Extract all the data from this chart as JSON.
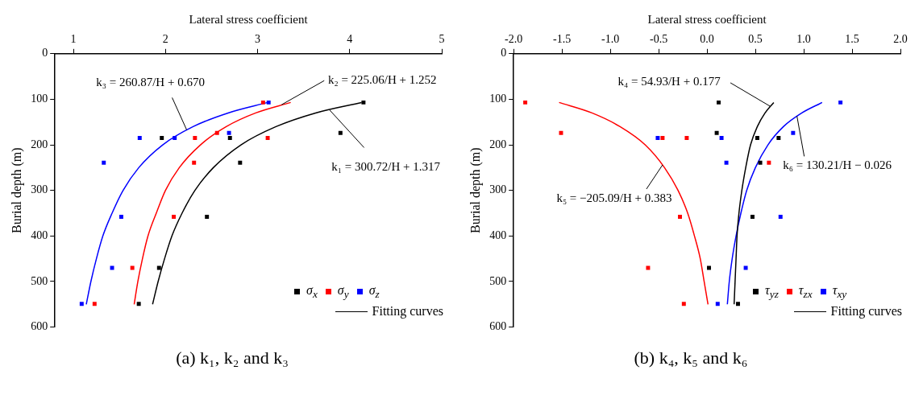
{
  "chart_data": [
    {
      "type": "scatter",
      "title": "(a) k₁, k₂ and k₃",
      "xlabel": "Lateral stress coefficient",
      "ylabel": "Burial depth (m)",
      "xlim": [
        0.8,
        5
      ],
      "xticks": [
        1,
        2,
        3,
        4,
        5
      ],
      "ylim": [
        600,
        0
      ],
      "yticks": [
        0,
        100,
        200,
        300,
        400,
        500,
        600
      ],
      "legend": "bottom right",
      "series": [
        {
          "name": "σ$_{x}$",
          "marker": "square",
          "color": "#000000",
          "x": [
            4.15,
            3.9,
            2.7,
            1.96,
            2.81,
            2.45,
            1.93,
            1.71
          ],
          "values": [
            107,
            174,
            185,
            185,
            239,
            358,
            470,
            549
          ]
        },
        {
          "name": "σ$_{y}$",
          "marker": "square",
          "color": "#ff0000",
          "x": [
            3.06,
            2.56,
            2.32,
            3.11,
            2.31,
            2.09,
            1.64,
            1.23
          ],
          "values": [
            107,
            174,
            185,
            185,
            239,
            358,
            470,
            549
          ]
        },
        {
          "name": "σ$_{z}$",
          "marker": "square",
          "color": "#0000ff",
          "x": [
            3.12,
            2.69,
            1.72,
            2.1,
            1.33,
            1.52,
            1.42,
            1.09
          ],
          "values": [
            107,
            174,
            185,
            185,
            239,
            358,
            470,
            549
          ]
        },
        {
          "name": "Fitting curves",
          "type": "line",
          "color": "#000000",
          "x": [
            4.13,
            3.63,
            3.2,
            2.82,
            2.52,
            2.32,
            2.18,
            2.07,
            1.99,
            1.92,
            1.86
          ],
          "values": [
            107,
            130,
            160,
            200,
            250,
            300,
            350,
            400,
            450,
            500,
            550
          ]
        },
        {
          "type": "line",
          "color": "#ff0000",
          "x": [
            3.36,
            2.98,
            2.66,
            2.38,
            2.15,
            2.0,
            1.9,
            1.81,
            1.75,
            1.7,
            1.66
          ],
          "values": [
            107,
            130,
            160,
            200,
            250,
            300,
            350,
            400,
            450,
            500,
            550
          ]
        },
        {
          "type": "line",
          "color": "#0000ff",
          "x": [
            3.11,
            2.68,
            2.3,
            1.97,
            1.71,
            1.54,
            1.42,
            1.32,
            1.25,
            1.19,
            1.14
          ],
          "values": [
            107,
            130,
            160,
            200,
            250,
            300,
            350,
            400,
            450,
            500,
            550
          ]
        }
      ],
      "annotations": [
        {
          "text": "k₃ = 260.87/H + 0.670",
          "x": 2.23,
          "y": 167
        },
        {
          "text": "k₂ = 225.06/H + 1.252",
          "x": 3.26,
          "y": 112
        },
        {
          "text": "k₁ = 300.72/H + 1.317",
          "x": 3.78,
          "y": 123
        }
      ]
    },
    {
      "type": "scatter",
      "title": "(b) k₄, k₅ and k₆",
      "xlabel": "Lateral stress coefficient",
      "ylabel": "Burial depth (m)",
      "xlim": [
        -2,
        2
      ],
      "xticks": [
        {
          "value": -2,
          "label": "-2.0"
        },
        -1.5,
        {
          "value": -1,
          "label": "-1.0"
        },
        -0.5,
        {
          "value": 0,
          "label": "0.0"
        },
        0.5,
        {
          "value": 1,
          "label": "1.0"
        },
        1.5,
        {
          "value": 2,
          "label": "2.0"
        }
      ],
      "ylim": [
        600,
        0
      ],
      "yticks": [
        0,
        100,
        200,
        300,
        400,
        500,
        600
      ],
      "legend": "bottom right",
      "series": [
        {
          "name": "τ$_{yz}$",
          "marker": "square",
          "color": "#000000",
          "x": [
            0.12,
            0.1,
            0.52,
            0.74,
            0.55,
            0.47,
            0.02,
            0.32
          ],
          "values": [
            107,
            174,
            185,
            185,
            239,
            358,
            470,
            549
          ]
        },
        {
          "name": "τ$_{zx}$",
          "marker": "square",
          "color": "#ff0000",
          "x": [
            -1.88,
            -1.51,
            -0.46,
            -0.21,
            0.64,
            -0.28,
            -0.61,
            -0.24
          ],
          "values": [
            107,
            174,
            185,
            185,
            239,
            358,
            470,
            549
          ]
        },
        {
          "name": "τ$_{xy}$",
          "marker": "square",
          "color": "#0000ff",
          "x": [
            1.38,
            0.89,
            0.15,
            -0.51,
            0.2,
            0.76,
            0.4,
            0.11
          ],
          "values": [
            107,
            174,
            185,
            185,
            239,
            358,
            470,
            549
          ]
        },
        {
          "name": "Fitting curves",
          "type": "line",
          "color": "#000000",
          "x": [
            0.69,
            0.6,
            0.52,
            0.45,
            0.4,
            0.36,
            0.33,
            0.31,
            0.3,
            0.29,
            0.28
          ],
          "values": [
            107,
            130,
            160,
            200,
            250,
            300,
            350,
            400,
            450,
            500,
            550
          ]
        },
        {
          "type": "line",
          "color": "#ff0000",
          "x": [
            -1.53,
            -1.19,
            -0.9,
            -0.64,
            -0.44,
            -0.3,
            -0.2,
            -0.13,
            -0.07,
            -0.03,
            0.01
          ],
          "values": [
            107,
            130,
            160,
            200,
            250,
            300,
            350,
            400,
            450,
            500,
            550
          ]
        },
        {
          "type": "line",
          "color": "#0000ff",
          "x": [
            1.19,
            0.98,
            0.79,
            0.63,
            0.5,
            0.41,
            0.35,
            0.3,
            0.26,
            0.23,
            0.21
          ],
          "values": [
            107,
            130,
            160,
            200,
            250,
            300,
            350,
            400,
            450,
            500,
            550
          ]
        }
      ],
      "annotations": [
        {
          "text": "k₄ = 54.93/H + 0.177",
          "x": 0.65,
          "y": 115
        },
        {
          "text": "k₅ = −205.09/H + 0.383",
          "x": -0.46,
          "y": 244
        },
        {
          "text": "k₆ = 130.21/H − 0.026",
          "x": 0.93,
          "y": 137
        }
      ]
    }
  ]
}
